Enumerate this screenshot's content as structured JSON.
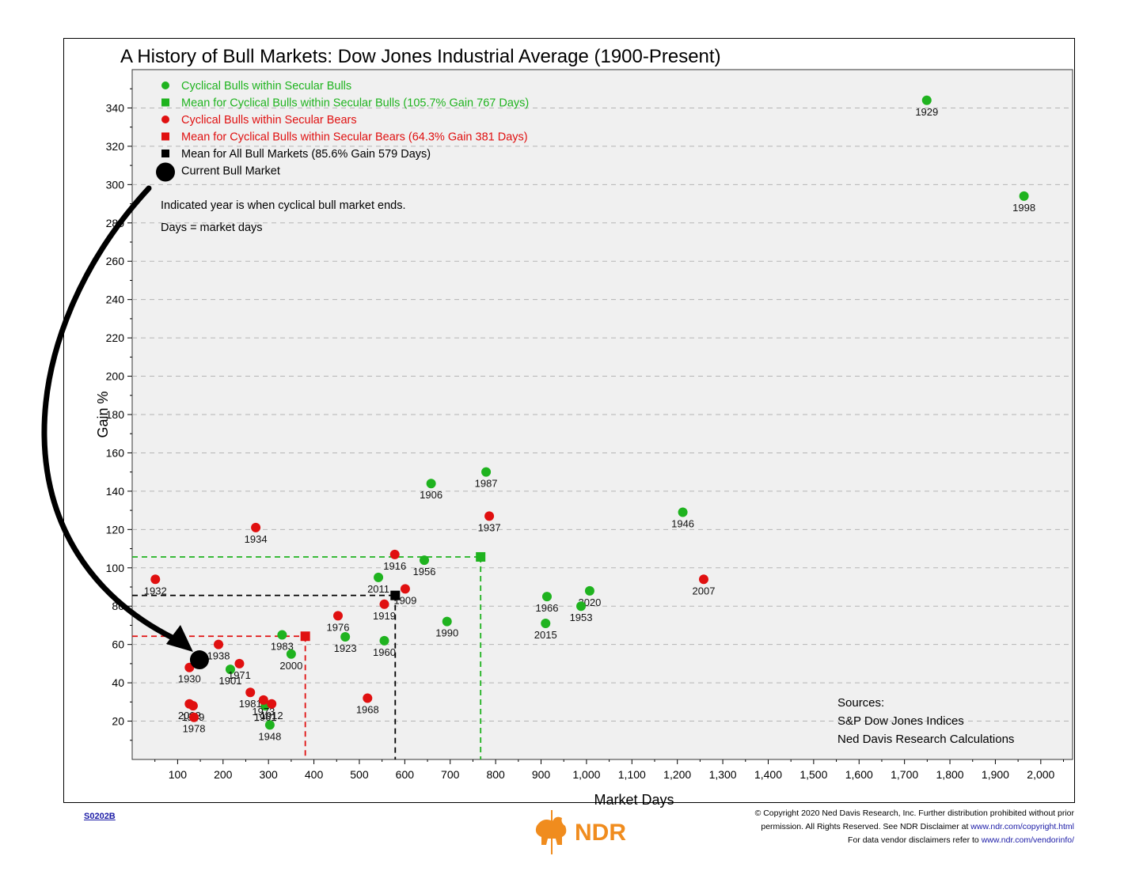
{
  "chart_data": {
    "type": "scatter",
    "title": "A History of Bull Markets: Dow Jones Industrial Average (1900-Present)",
    "xlabel": "Market Days",
    "ylabel": "Gain %",
    "xlim": [
      0,
      2070
    ],
    "ylim": [
      0,
      360
    ],
    "x_ticks": [
      100,
      200,
      300,
      400,
      500,
      600,
      700,
      800,
      900,
      1000,
      1100,
      1200,
      1300,
      1400,
      1500,
      1600,
      1700,
      1800,
      1900,
      2000
    ],
    "x_tick_labels": [
      "100",
      "200",
      "300",
      "400",
      "500",
      "600",
      "700",
      "800",
      "900",
      "1,000",
      "1,100",
      "1,200",
      "1,300",
      "1,400",
      "1,500",
      "1,600",
      "1,700",
      "1,800",
      "1,900",
      "2,000"
    ],
    "y_ticks": [
      20,
      40,
      60,
      80,
      100,
      120,
      140,
      160,
      180,
      200,
      220,
      240,
      260,
      280,
      300,
      320,
      340
    ],
    "y_tick_labels": [
      "20",
      "40",
      "60",
      "80",
      "100",
      "120",
      "140",
      "160",
      "180",
      "200",
      "220",
      "240",
      "260",
      "280",
      "300",
      "320",
      "340"
    ],
    "grid": "horizontal dashed",
    "legend_position": "top-left",
    "colors": {
      "green": "#1fb31f",
      "red": "#e01010",
      "black": "#000000",
      "plot_bg": "#f0f0f0"
    },
    "legend": [
      {
        "label": "Cyclical Bulls within Secular Bulls",
        "marker": "circle",
        "color": "#1fb31f"
      },
      {
        "label": "Mean for Cyclical Bulls within Secular Bulls (105.7% Gain 767 Days)",
        "marker": "square",
        "color": "#1fb31f"
      },
      {
        "label": "Cyclical Bulls within Secular Bears",
        "marker": "circle",
        "color": "#e01010"
      },
      {
        "label": "Mean for Cyclical Bulls within Secular Bears (64.3% Gain 381 Days)",
        "marker": "square",
        "color": "#e01010"
      },
      {
        "label": "Mean for All Bull Markets (85.6% Gain 579 Days)",
        "marker": "square",
        "color": "#000000"
      },
      {
        "label": "Current Bull Market",
        "marker": "big-circle",
        "color": "#000000"
      }
    ],
    "notes": [
      "Indicated year is when cyclical bull market ends.",
      "Days = market days"
    ],
    "sources": [
      "Sources:",
      "S&P Dow Jones Indices",
      "Ned Davis Research Calculations"
    ],
    "series": [
      {
        "name": "Cyclical Bulls within Secular Bulls",
        "color": "#1fb31f",
        "points": [
          {
            "label": "1929",
            "x": 1749,
            "y": 344
          },
          {
            "label": "1998",
            "x": 1963,
            "y": 294
          },
          {
            "label": "1987",
            "x": 779,
            "y": 150
          },
          {
            "label": "1906",
            "x": 658,
            "y": 144
          },
          {
            "label": "1946",
            "x": 1212,
            "y": 129
          },
          {
            "label": "1956",
            "x": 643,
            "y": 104
          },
          {
            "label": "2011",
            "x": 542,
            "y": 95
          },
          {
            "label": "2020",
            "x": 1007,
            "y": 88
          },
          {
            "label": "1966",
            "x": 913,
            "y": 85
          },
          {
            "label": "1953",
            "x": 988,
            "y": 80
          },
          {
            "label": "1990",
            "x": 693,
            "y": 72
          },
          {
            "label": "2015",
            "x": 910,
            "y": 71
          },
          {
            "label": "1983",
            "x": 330,
            "y": 65
          },
          {
            "label": "1923",
            "x": 469,
            "y": 64
          },
          {
            "label": "1960",
            "x": 555,
            "y": 62
          },
          {
            "label": "2000",
            "x": 350,
            "y": 55
          },
          {
            "label": "1901",
            "x": 216,
            "y": 47
          },
          {
            "label": "1961",
            "x": 293,
            "y": 28
          },
          {
            "label": "1948",
            "x": 303,
            "y": 18
          }
        ]
      },
      {
        "name": "Cyclical Bulls within Secular Bears",
        "color": "#e01010",
        "points": [
          {
            "label": "1934",
            "x": 272,
            "y": 121
          },
          {
            "label": "1916",
            "x": 578,
            "y": 107
          },
          {
            "label": "1932",
            "x": 51,
            "y": 94
          },
          {
            "label": "2007",
            "x": 1258,
            "y": 94
          },
          {
            "label": "1937",
            "x": 786,
            "y": 127
          },
          {
            "label": "1909",
            "x": 601,
            "y": 89
          },
          {
            "label": "1919",
            "x": 555,
            "y": 81
          },
          {
            "label": "1976",
            "x": 453,
            "y": 75
          },
          {
            "label": "1938",
            "x": 190,
            "y": 60
          },
          {
            "label": "1971",
            "x": 236,
            "y": 50
          },
          {
            "label": "1930",
            "x": 126,
            "y": 48
          },
          {
            "label": "1981",
            "x": 260,
            "y": 35
          },
          {
            "label": "1968",
            "x": 518,
            "y": 32
          },
          {
            "label": "1973",
            "x": 289,
            "y": 31
          },
          {
            "label": "1912",
            "x": 307,
            "y": 29
          },
          {
            "label": "2002",
            "x": 126,
            "y": 29
          },
          {
            "label": "1939",
            "x": 134,
            "y": 28
          },
          {
            "label": "1978",
            "x": 136,
            "y": 22
          }
        ]
      }
    ],
    "means": [
      {
        "name": "Mean for Cyclical Bulls within Secular Bulls",
        "x": 767,
        "y": 105.7,
        "color": "#1fb31f"
      },
      {
        "name": "Mean for Cyclical Bulls within Secular Bears",
        "x": 381,
        "y": 64.3,
        "color": "#e01010"
      },
      {
        "name": "Mean for All Bull Markets",
        "x": 579,
        "y": 85.6,
        "color": "#000000"
      }
    ],
    "current": {
      "name": "Current Bull Market",
      "x": 148,
      "y": 52
    }
  },
  "footer": {
    "code": "S0202B",
    "copyright_lines": [
      "© Copyright 2020 Ned Davis Research, Inc. Further distribution prohibited without prior",
      "permission. All Rights Reserved. See NDR Disclaimer at ",
      "For data vendor disclaimers refer to "
    ],
    "copyright_link": "www.ndr.com/copyright.html",
    "vendor_link": "www.ndr.com/vendorinfo/",
    "logo_text": "NDR",
    "logo_color": "#f08c1e"
  }
}
